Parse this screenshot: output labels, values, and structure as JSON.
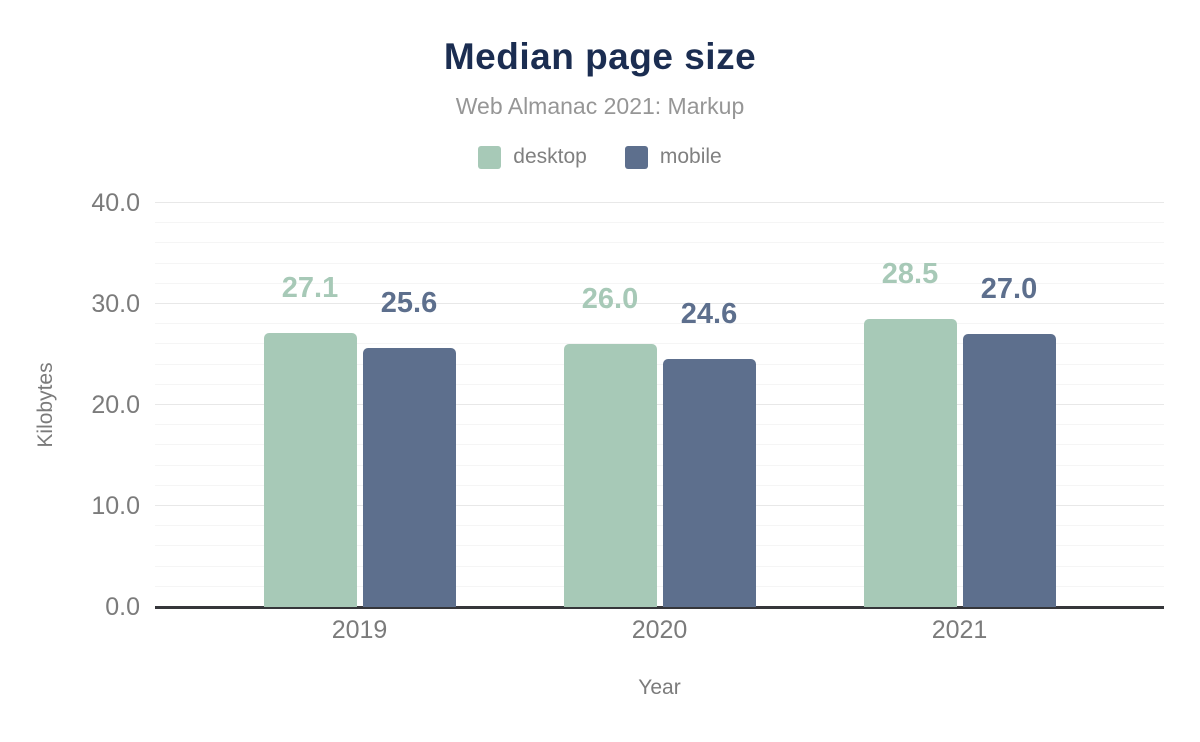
{
  "chart_data": {
    "type": "bar",
    "title": "Median page size",
    "subtitle": "Web Almanac 2021: Markup",
    "xlabel": "Year",
    "ylabel": "Kilobytes",
    "categories": [
      "2019",
      "2020",
      "2021"
    ],
    "series": [
      {
        "name": "desktop",
        "color": "#a7c9b7",
        "values": [
          27.1,
          26.0,
          28.5
        ],
        "labels": [
          "27.1",
          "26.0",
          "28.5"
        ]
      },
      {
        "name": "mobile",
        "color": "#5d6f8d",
        "values": [
          25.6,
          24.6,
          27.0
        ],
        "labels": [
          "25.6",
          "24.6",
          "27.0"
        ]
      }
    ],
    "ylim": [
      0,
      40
    ],
    "yticks": [
      {
        "value": 0,
        "label": "0.0"
      },
      {
        "value": 10,
        "label": "10.0"
      },
      {
        "value": 20,
        "label": "20.0"
      },
      {
        "value": 30,
        "label": "30.0"
      },
      {
        "value": 40,
        "label": "40.0"
      }
    ],
    "grid": {
      "minor_step": 2,
      "major_step": 10,
      "minor_color": "#f5f5f5",
      "major_color": "#e8e8e8"
    },
    "legend_position": "top",
    "colors": {
      "title": "#1b2d51",
      "subtitle": "#969696",
      "axis_text": "#7b7b7b",
      "axis_line": "#35363a",
      "background": "#ffffff"
    }
  }
}
